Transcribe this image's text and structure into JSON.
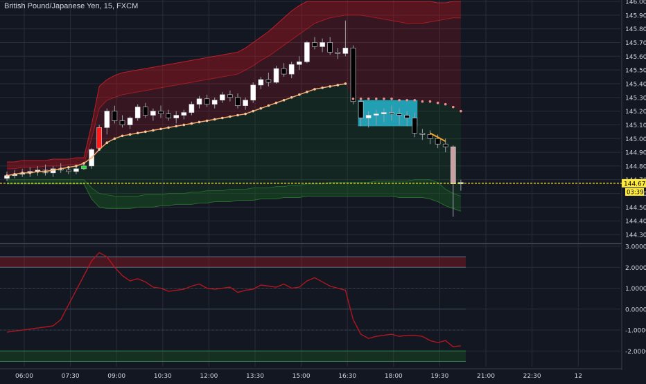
{
  "title": "British Pound/Japanese Yen, 15, FXCM",
  "colors": {
    "background": "#131722",
    "grid": "#2a2e39",
    "up_candle": "#ffffff",
    "down_candle": "#000000",
    "wick": "#9aa0ac",
    "ma_line": "#f7a96b",
    "ma_dots_after": "#f08c8c",
    "band_upper": "#b7151b",
    "band_lower": "#1b5e20",
    "price_line": "#ffeb3b",
    "highlight_box": "#26b5cc",
    "oscillator": "#b2161e"
  },
  "current_price": {
    "label": "144.674",
    "countdown": "03:39",
    "value": 144.674
  },
  "chart_data": [
    {
      "type": "candlestick",
      "title": "British Pound/Japanese Yen, 15, FXCM",
      "y_ticks": [
        "146.000",
        "145.900",
        "145.800",
        "145.700",
        "145.600",
        "145.500",
        "145.400",
        "145.300",
        "145.200",
        "145.100",
        "145.000",
        "144.900",
        "144.800",
        "144.700",
        "144.600",
        "144.500",
        "144.400",
        "144.300"
      ],
      "ylim": [
        144.27,
        146.0
      ],
      "x_ticks": [
        "06:00",
        "07:30",
        "09:00",
        "10:30",
        "12:00",
        "13:30",
        "15:00",
        "16:30",
        "18:00",
        "19:30",
        "21:00",
        "22:30",
        "12"
      ],
      "x_tick_positions": [
        0,
        6,
        12,
        18,
        24,
        30,
        36,
        42,
        48,
        54,
        60,
        66,
        72
      ],
      "candles": [
        [
          0,
          144.71,
          144.76,
          144.69,
          144.73
        ],
        [
          1,
          144.73,
          144.77,
          144.71,
          144.74
        ],
        [
          2,
          144.74,
          144.78,
          144.72,
          144.75
        ],
        [
          3,
          144.75,
          144.79,
          144.72,
          144.76
        ],
        [
          4,
          144.76,
          144.8,
          144.73,
          144.77
        ],
        [
          5,
          144.77,
          144.81,
          144.73,
          144.75
        ],
        [
          6,
          144.75,
          144.8,
          144.72,
          144.78
        ],
        [
          7,
          144.78,
          144.82,
          144.75,
          144.77
        ],
        [
          8,
          144.77,
          144.8,
          144.74,
          144.76
        ],
        [
          9,
          144.76,
          144.8,
          144.74,
          144.78
        ],
        [
          10,
          144.78,
          144.82,
          144.77,
          144.8
        ],
        [
          11,
          144.8,
          144.93,
          144.78,
          144.92
        ],
        [
          12,
          144.93,
          145.1,
          144.92,
          145.08
        ],
        [
          13,
          145.08,
          145.22,
          145.03,
          145.2
        ],
        [
          14,
          145.2,
          145.24,
          145.11,
          145.13
        ],
        [
          15,
          145.13,
          145.17,
          145.08,
          145.1
        ],
        [
          16,
          145.1,
          145.16,
          145.07,
          145.15
        ],
        [
          17,
          145.15,
          145.25,
          145.13,
          145.23
        ],
        [
          18,
          145.23,
          145.26,
          145.15,
          145.17
        ],
        [
          19,
          145.17,
          145.22,
          145.13,
          145.2
        ],
        [
          20,
          145.2,
          145.24,
          145.15,
          145.18
        ],
        [
          21,
          145.18,
          145.21,
          145.13,
          145.15
        ],
        [
          22,
          145.15,
          145.2,
          145.11,
          145.17
        ],
        [
          23,
          145.17,
          145.21,
          145.14,
          145.19
        ],
        [
          24,
          145.19,
          145.27,
          145.17,
          145.25
        ],
        [
          25,
          145.25,
          145.31,
          145.22,
          145.29
        ],
        [
          26,
          145.29,
          145.32,
          145.23,
          145.25
        ],
        [
          27,
          145.25,
          145.3,
          145.22,
          145.28
        ],
        [
          28,
          145.28,
          145.34,
          145.26,
          145.32
        ],
        [
          29,
          145.32,
          145.35,
          145.27,
          145.3
        ],
        [
          30,
          145.3,
          145.33,
          145.22,
          145.24
        ],
        [
          31,
          145.24,
          145.3,
          145.21,
          145.28
        ],
        [
          32,
          145.28,
          145.41,
          145.26,
          145.39
        ],
        [
          33,
          145.39,
          145.45,
          145.36,
          145.43
        ],
        [
          34,
          145.43,
          145.48,
          145.38,
          145.41
        ],
        [
          35,
          145.41,
          145.53,
          145.4,
          145.51
        ],
        [
          36,
          145.51,
          145.55,
          145.45,
          145.47
        ],
        [
          37,
          145.47,
          145.56,
          145.44,
          145.54
        ],
        [
          38,
          145.54,
          145.6,
          145.5,
          145.56
        ],
        [
          39,
          145.56,
          145.71,
          145.55,
          145.7
        ],
        [
          40,
          145.7,
          145.74,
          145.65,
          145.67
        ],
        [
          41,
          145.67,
          145.73,
          145.63,
          145.7
        ],
        [
          42,
          145.7,
          145.74,
          145.61,
          145.63
        ],
        [
          43,
          145.63,
          145.66,
          145.58,
          145.62
        ],
        [
          44,
          145.62,
          145.86,
          145.6,
          145.66
        ],
        [
          45,
          145.66,
          145.68,
          145.25,
          145.27
        ],
        [
          46,
          145.27,
          145.29,
          145.09,
          145.15
        ],
        [
          47,
          145.15,
          145.2,
          145.08,
          145.17
        ],
        [
          48,
          145.17,
          145.21,
          145.1,
          145.18
        ],
        [
          49,
          145.18,
          145.22,
          145.12,
          145.19
        ],
        [
          50,
          145.19,
          145.24,
          145.13,
          145.18
        ],
        [
          51,
          145.18,
          145.22,
          145.1,
          145.17
        ],
        [
          52,
          145.17,
          145.2,
          145.09,
          145.15
        ],
        [
          53,
          145.15,
          145.19,
          145.01,
          145.04
        ],
        [
          54,
          145.04,
          145.07,
          144.99,
          145.03
        ],
        [
          55,
          145.03,
          145.06,
          144.96,
          145.0
        ],
        [
          56,
          145.0,
          145.03,
          144.93,
          144.96
        ],
        [
          57,
          144.96,
          145.0,
          144.9,
          144.94
        ],
        [
          58,
          144.94,
          144.95,
          144.43,
          144.67
        ],
        [
          59,
          144.67,
          144.7,
          144.62,
          144.68
        ]
      ],
      "moving_average": [
        144.73,
        144.74,
        144.75,
        144.75,
        144.76,
        144.76,
        144.77,
        144.78,
        144.79,
        144.8,
        144.82,
        144.86,
        144.92,
        144.97,
        145.0,
        145.02,
        145.03,
        145.04,
        145.05,
        145.06,
        145.07,
        145.08,
        145.09,
        145.1,
        145.11,
        145.12,
        145.13,
        145.14,
        145.15,
        145.16,
        145.17,
        145.18,
        145.2,
        145.22,
        145.24,
        145.26,
        145.28,
        145.3,
        145.32,
        145.34,
        145.36,
        145.37,
        145.38,
        145.39,
        145.4,
        145.29,
        145.29,
        145.29,
        145.29,
        145.29,
        145.29,
        145.28,
        145.28,
        145.28,
        145.27,
        145.27,
        145.26,
        145.25,
        145.23,
        145.2
      ],
      "band_upper_outer": [
        144.83,
        144.83,
        144.84,
        144.84,
        144.84,
        144.84,
        144.85,
        144.85,
        144.85,
        144.86,
        144.86,
        145.1,
        145.38,
        145.43,
        145.46,
        145.48,
        145.49,
        145.5,
        145.51,
        145.52,
        145.53,
        145.54,
        145.55,
        145.56,
        145.57,
        145.58,
        145.59,
        145.6,
        145.61,
        145.62,
        145.63,
        145.66,
        145.7,
        145.74,
        145.78,
        145.83,
        145.88,
        145.93,
        145.97,
        146.0,
        146.0,
        146.0,
        146.0,
        146.0,
        146.0,
        146.0,
        146.0,
        146.0,
        146.0,
        146.0,
        146.0,
        146.0,
        146.0,
        146.0,
        146.0,
        146.0,
        145.99,
        145.99,
        146.0,
        146.0
      ],
      "band_upper_inner": [
        144.78,
        144.78,
        144.79,
        144.79,
        144.79,
        144.8,
        144.8,
        144.8,
        144.81,
        144.81,
        144.81,
        145.0,
        145.22,
        145.28,
        145.3,
        145.32,
        145.33,
        145.34,
        145.35,
        145.36,
        145.37,
        145.38,
        145.39,
        145.4,
        145.41,
        145.42,
        145.43,
        145.44,
        145.45,
        145.46,
        145.47,
        145.5,
        145.53,
        145.57,
        145.6,
        145.64,
        145.68,
        145.72,
        145.76,
        145.8,
        145.84,
        145.86,
        145.88,
        145.89,
        145.9,
        145.9,
        145.9,
        145.89,
        145.88,
        145.87,
        145.86,
        145.85,
        145.84,
        145.84,
        145.84,
        145.85,
        145.86,
        145.87,
        145.88,
        145.88
      ],
      "band_lower_inner": [
        144.7,
        144.7,
        144.7,
        144.7,
        144.7,
        144.7,
        144.7,
        144.7,
        144.7,
        144.7,
        144.7,
        144.64,
        144.6,
        144.59,
        144.58,
        144.58,
        144.58,
        144.58,
        144.59,
        144.59,
        144.59,
        144.6,
        144.6,
        144.6,
        144.61,
        144.61,
        144.62,
        144.62,
        144.62,
        144.63,
        144.63,
        144.63,
        144.64,
        144.64,
        144.64,
        144.65,
        144.65,
        144.66,
        144.66,
        144.67,
        144.67,
        144.67,
        144.68,
        144.68,
        144.68,
        144.68,
        144.68,
        144.68,
        144.69,
        144.69,
        144.69,
        144.69,
        144.69,
        144.7,
        144.7,
        144.7,
        144.68,
        144.63,
        144.6,
        144.58
      ],
      "band_lower_outer": [
        144.67,
        144.67,
        144.67,
        144.67,
        144.67,
        144.67,
        144.67,
        144.67,
        144.67,
        144.67,
        144.67,
        144.56,
        144.5,
        144.49,
        144.49,
        144.49,
        144.49,
        144.5,
        144.5,
        144.5,
        144.51,
        144.51,
        144.52,
        144.52,
        144.52,
        144.53,
        144.53,
        144.54,
        144.54,
        144.54,
        144.55,
        144.55,
        144.55,
        144.56,
        144.56,
        144.56,
        144.57,
        144.57,
        144.57,
        144.58,
        144.58,
        144.58,
        144.58,
        144.58,
        144.58,
        144.58,
        144.58,
        144.58,
        144.58,
        144.58,
        144.58,
        144.57,
        144.57,
        144.57,
        144.57,
        144.56,
        144.54,
        144.51,
        144.49,
        144.47
      ],
      "highlight_box": {
        "x_from": 46,
        "x_to": 53,
        "y_from": 145.09,
        "y_to": 145.28
      }
    },
    {
      "type": "line",
      "y_ticks": [
        "3.0000",
        "2.0000",
        "1.0000",
        "0.0000",
        "-1.0000",
        "-2.0000"
      ],
      "ylim": [
        -2.75,
        3.0
      ],
      "x_tick_positions": [
        0,
        6,
        12,
        18,
        24,
        30,
        36,
        42,
        48,
        54,
        60,
        66,
        72
      ],
      "reference_lines": [
        2.5,
        2.0,
        1.0,
        0.0,
        -1.0,
        -2.0,
        -2.5
      ],
      "series": [
        {
          "values": [
            -1.1,
            -1.05,
            -1.0,
            -0.95,
            -0.9,
            -0.85,
            -0.8,
            -0.5,
            0.2,
            0.9,
            1.6,
            2.3,
            2.7,
            2.5,
            2.0,
            1.6,
            1.35,
            1.45,
            1.3,
            1.05,
            1.0,
            0.85,
            0.9,
            0.95,
            1.1,
            1.2,
            1.0,
            0.95,
            1.0,
            1.05,
            0.8,
            0.9,
            0.95,
            1.15,
            1.1,
            1.05,
            1.2,
            1.0,
            1.05,
            1.35,
            1.5,
            1.3,
            1.1,
            1.0,
            0.9,
            -0.5,
            -1.2,
            -1.4,
            -1.3,
            -1.25,
            -1.2,
            -1.3,
            -1.25,
            -1.25,
            -1.3,
            -1.5,
            -1.6,
            -1.5,
            -1.8,
            -1.75
          ]
        }
      ]
    }
  ]
}
